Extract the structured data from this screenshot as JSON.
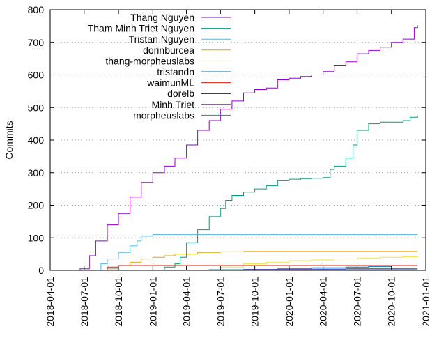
{
  "chart_data": {
    "type": "line",
    "title": "",
    "xlabel": "",
    "ylabel": "Commits",
    "ylim": [
      0,
      800
    ],
    "xlim": [
      "2018-04-01",
      "2021-01-01"
    ],
    "y_ticks": [
      "0",
      "100",
      "200",
      "300",
      "400",
      "500",
      "600",
      "700",
      "800"
    ],
    "x_ticks": [
      "2018-04-01",
      "2018-07-01",
      "2018-10-01",
      "2019-01-01",
      "2019-04-01",
      "2019-07-01",
      "2019-10-01",
      "2020-01-01",
      "2020-04-01",
      "2020-07-01",
      "2020-10-01",
      "2021-01-01"
    ],
    "grid": "horizontal dotted",
    "legend_position": "top-right",
    "series": [
      {
        "name": "Thang Nguyen",
        "color": "#9400d3",
        "x": [
          "2018-05-25",
          "2018-06-20",
          "2018-07-15",
          "2018-08-01",
          "2018-09-01",
          "2018-10-01",
          "2018-11-01",
          "2018-12-01",
          "2019-01-01",
          "2019-02-01",
          "2019-03-01",
          "2019-04-01",
          "2019-05-01",
          "2019-06-01",
          "2019-07-01",
          "2019-08-01",
          "2019-09-01",
          "2019-10-01",
          "2019-11-01",
          "2019-12-01",
          "2020-01-01",
          "2020-02-01",
          "2020-03-01",
          "2020-04-01",
          "2020-05-01",
          "2020-06-01",
          "2020-07-01",
          "2020-08-01",
          "2020-09-01",
          "2020-10-01",
          "2020-11-01",
          "2020-12-01",
          "2020-12-10"
        ],
        "y": [
          0,
          5,
          45,
          90,
          140,
          175,
          225,
          270,
          300,
          320,
          345,
          385,
          430,
          460,
          495,
          520,
          545,
          555,
          560,
          585,
          590,
          595,
          600,
          610,
          630,
          640,
          665,
          675,
          685,
          700,
          710,
          745,
          752
        ]
      },
      {
        "name": "Tham Minh Triet Nguyen",
        "color": "#009e73",
        "x": [
          "2019-01-15",
          "2019-02-01",
          "2019-03-01",
          "2019-03-15",
          "2019-04-01",
          "2019-05-01",
          "2019-06-01",
          "2019-07-01",
          "2019-07-15",
          "2019-08-01",
          "2019-09-01",
          "2019-10-01",
          "2019-11-01",
          "2019-12-01",
          "2020-01-01",
          "2020-02-01",
          "2020-03-01",
          "2020-04-01",
          "2020-04-20",
          "2020-05-01",
          "2020-06-01",
          "2020-06-20",
          "2020-07-01",
          "2020-08-01",
          "2020-09-01",
          "2020-10-01",
          "2020-11-01",
          "2020-11-20",
          "2020-12-10"
        ],
        "y": [
          0,
          10,
          20,
          40,
          85,
          125,
          165,
          190,
          215,
          230,
          240,
          250,
          260,
          275,
          280,
          282,
          283,
          285,
          310,
          320,
          345,
          385,
          430,
          450,
          455,
          455,
          460,
          470,
          475
        ]
      },
      {
        "name": "Tristan Nguyen",
        "color": "#56b4e9",
        "x": [
          "2018-08-01",
          "2018-08-15",
          "2018-09-01",
          "2018-10-01",
          "2018-11-01",
          "2018-11-20",
          "2018-12-01",
          "2019-01-01",
          "2020-12-10"
        ],
        "y": [
          0,
          20,
          35,
          55,
          75,
          90,
          105,
          110,
          110
        ]
      },
      {
        "name": "dorinburcea",
        "color": "#e69f00",
        "x": [
          "2018-08-01",
          "2018-09-01",
          "2018-10-01",
          "2018-11-01",
          "2018-12-01",
          "2019-01-01",
          "2019-02-01",
          "2019-03-01",
          "2019-05-01",
          "2019-07-01",
          "2019-09-01",
          "2019-12-01",
          "2020-12-10"
        ],
        "y": [
          0,
          5,
          15,
          25,
          35,
          40,
          45,
          50,
          55,
          57,
          58,
          58,
          58
        ]
      },
      {
        "name": "thang-morpheuslabs",
        "color": "#f0e442",
        "x": [
          "2019-05-01",
          "2019-07-01",
          "2019-09-01",
          "2019-11-01",
          "2020-01-01",
          "2020-03-01",
          "2020-05-01",
          "2020-07-01",
          "2020-09-01",
          "2020-11-01",
          "2020-12-10"
        ],
        "y": [
          0,
          10,
          20,
          25,
          30,
          32,
          35,
          38,
          40,
          42,
          45
        ]
      },
      {
        "name": "tristandn",
        "color": "#0072b2",
        "x": [
          "2019-06-01",
          "2019-09-01",
          "2019-12-01",
          "2020-03-01",
          "2020-06-01",
          "2020-08-01",
          "2020-10-01",
          "2020-12-10"
        ],
        "y": [
          0,
          3,
          5,
          8,
          10,
          12,
          15,
          15
        ]
      },
      {
        "name": "waimunML",
        "color": "#e51e10",
        "x": [
          "2018-08-15",
          "2018-09-01",
          "2018-10-01",
          "2020-12-10"
        ],
        "y": [
          0,
          10,
          15,
          15
        ]
      },
      {
        "name": "dorelb",
        "color": "#000000",
        "x": [
          "2018-04-01",
          "2020-12-10"
        ],
        "y": [
          0,
          0
        ]
      },
      {
        "name": "Minh Triet",
        "color": "#9400d3",
        "x": [
          "2019-03-01",
          "2019-06-01",
          "2019-09-01",
          "2020-01-01",
          "2020-06-01",
          "2020-12-10"
        ],
        "y": [
          0,
          2,
          3,
          4,
          5,
          5
        ]
      },
      {
        "name": "morpheuslabs",
        "color": "#009e73",
        "x": [
          "2018-09-01",
          "2018-10-01",
          "2019-06-01",
          "2020-12-10"
        ],
        "y": [
          0,
          1,
          2,
          2
        ]
      }
    ]
  }
}
